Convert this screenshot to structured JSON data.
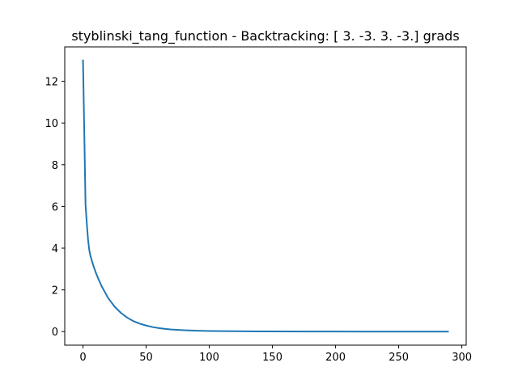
{
  "chart_data": {
    "type": "line",
    "title": "styblinski_tang_function - Backtracking: [ 3. -3.  3. -3.] grads",
    "xlabel": "",
    "ylabel": "",
    "xlim": [
      -14.45,
      303.45
    ],
    "ylim": [
      -0.65,
      13.65
    ],
    "xticks": [
      0,
      50,
      100,
      150,
      200,
      250,
      300
    ],
    "xtick_labels": [
      "0",
      "50",
      "100",
      "150",
      "200",
      "250",
      "300"
    ],
    "yticks": [
      0,
      2,
      4,
      6,
      8,
      10,
      12
    ],
    "ytick_labels": [
      "0",
      "2",
      "4",
      "6",
      "8",
      "10",
      "12"
    ],
    "grid": false,
    "legend": "none",
    "series": [
      {
        "color": "#1f77b4",
        "x": [
          0,
          1,
          2,
          3,
          4,
          5,
          6,
          8,
          10,
          12,
          15,
          20,
          25,
          30,
          35,
          40,
          45,
          50,
          55,
          60,
          65,
          70,
          80,
          90,
          100,
          110,
          120,
          130,
          140,
          150,
          175,
          200,
          225,
          250,
          275,
          289
        ],
        "y": [
          13.0,
          9.6,
          6.1,
          5.2,
          4.4,
          3.9,
          3.6,
          3.2,
          2.85,
          2.55,
          2.15,
          1.6,
          1.2,
          0.9,
          0.67,
          0.5,
          0.38,
          0.29,
          0.22,
          0.17,
          0.13,
          0.1,
          0.065,
          0.045,
          0.03,
          0.022,
          0.016,
          0.012,
          0.009,
          0.007,
          0.004,
          0.002,
          0.001,
          0.0006,
          0.0004,
          0.0003
        ]
      }
    ]
  }
}
